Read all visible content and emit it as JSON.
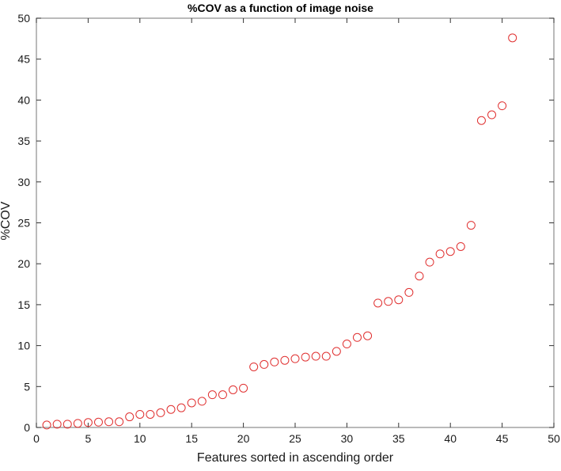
{
  "chart_data": {
    "type": "scatter",
    "title": "%COV as a function of image noise",
    "xlabel": "Features sorted in ascending order",
    "ylabel": "%COV",
    "xlim": [
      0,
      50
    ],
    "ylim": [
      0,
      50
    ],
    "xticks": [
      0,
      5,
      10,
      15,
      20,
      25,
      30,
      35,
      40,
      45,
      50
    ],
    "yticks": [
      0,
      5,
      10,
      15,
      20,
      25,
      30,
      35,
      40,
      45,
      50
    ],
    "grid": false,
    "legend": null,
    "marker": "open-circle",
    "marker_color": "#e03030",
    "x": [
      1,
      2,
      3,
      4,
      5,
      6,
      7,
      8,
      9,
      10,
      11,
      12,
      13,
      14,
      15,
      16,
      17,
      18,
      19,
      20,
      21,
      22,
      23,
      24,
      25,
      26,
      27,
      28,
      29,
      30,
      31,
      32,
      33,
      34,
      35,
      36,
      37,
      38,
      39,
      40,
      41,
      42,
      43,
      44,
      45,
      46
    ],
    "y": [
      0.3,
      0.4,
      0.4,
      0.5,
      0.6,
      0.65,
      0.7,
      0.7,
      1.3,
      1.6,
      1.6,
      1.8,
      2.2,
      2.4,
      3.0,
      3.2,
      4.0,
      4.0,
      4.6,
      4.8,
      7.4,
      7.7,
      8.0,
      8.2,
      8.4,
      8.6,
      8.7,
      8.7,
      9.3,
      10.2,
      11.0,
      11.2,
      15.2,
      15.4,
      15.6,
      16.5,
      18.5,
      20.2,
      21.2,
      21.5,
      22.1,
      24.7,
      37.5,
      38.2,
      39.3,
      47.6
    ]
  }
}
